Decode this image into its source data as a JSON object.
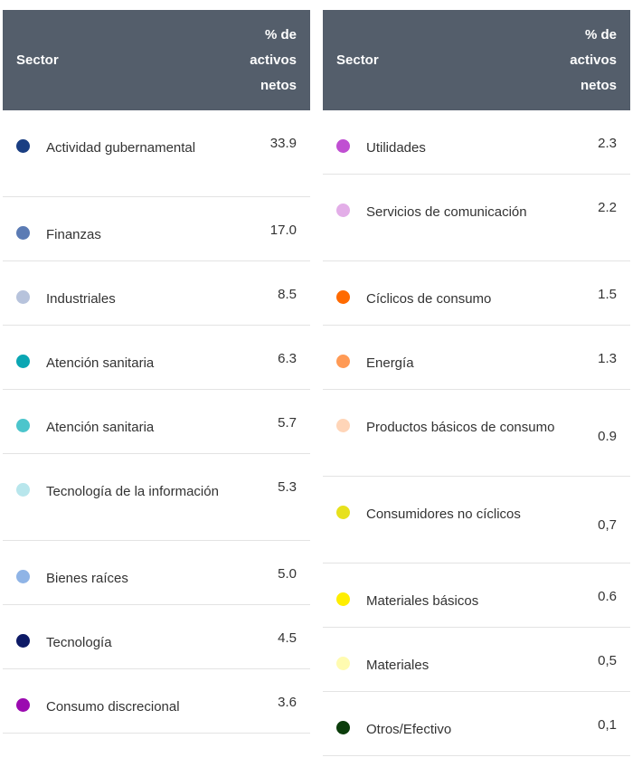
{
  "columns": {
    "sector": "Sector",
    "pct": [
      "% de",
      "activos",
      "netos"
    ]
  },
  "left": [
    {
      "label": "Actividad gubernamental",
      "value": "33.9",
      "color": "#1a3e82"
    },
    {
      "label": "Finanzas",
      "value": "17.0",
      "color": "#5b7bb4"
    },
    {
      "label": "Industriales",
      "value": "8.5",
      "color": "#b7c3dc"
    },
    {
      "label": "Atención sanitaria",
      "value": "6.3",
      "color": "#0aa6b3"
    },
    {
      "label": "Atención sanitaria",
      "value": "5.7",
      "color": "#4cc5cc"
    },
    {
      "label": "Tecnología de la información",
      "value": "5.3",
      "color": "#b8e6ec"
    },
    {
      "label": "Bienes raíces",
      "value": "5.0",
      "color": "#8fb4e6"
    },
    {
      "label": "Tecnología",
      "value": "4.5",
      "color": "#0d1a66"
    },
    {
      "label": "Consumo discrecional",
      "value": "3.6",
      "color": "#9b0ab0"
    }
  ],
  "right": [
    {
      "label": "Utilidades",
      "value": "2.3",
      "color": "#c04fd2"
    },
    {
      "label": "Servicios de comunicación",
      "value": "2.2",
      "color": "#e3aee8"
    },
    {
      "label": "Cíclicos de consumo",
      "value": "1.5",
      "color": "#ff6a00"
    },
    {
      "label": "Energía",
      "value": "1.3",
      "color": "#ff9a55"
    },
    {
      "label": "Productos básicos de consumo",
      "value": "0.9",
      "color": "#ffd5b8"
    },
    {
      "label": "Consumidores no cíclicos",
      "value": "0,7",
      "color": "#e7e11c"
    },
    {
      "label": "Materiales básicos",
      "value": "0.6",
      "color": "#ffee00"
    },
    {
      "label": "Materiales",
      "value": "0,5",
      "color": "#fffbb0"
    },
    {
      "label": "Otros/Efectivo",
      "value": "0,1",
      "color": "#0b3d0b"
    }
  ]
}
